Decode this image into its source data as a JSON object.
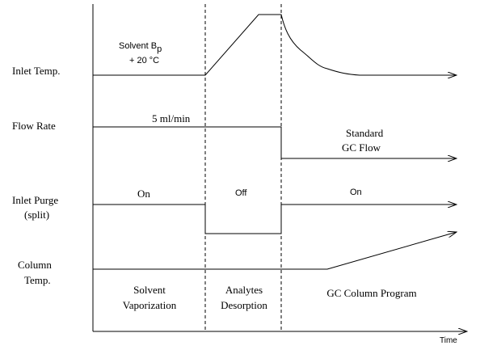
{
  "row_labels": {
    "inlet_temp": "Inlet Temp.",
    "flow_rate": "Flow Rate",
    "inlet_purge": [
      "Inlet Purge",
      "(split)"
    ],
    "column_temp": [
      "Column",
      "Temp."
    ]
  },
  "annotations": {
    "solvent_bp": [
      "Solvent B",
      "p",
      "+ 20 °C"
    ],
    "flow": "5 ml/min",
    "standard_flow": [
      "Standard",
      "GC Flow"
    ],
    "purge_on_1": "On",
    "purge_off": "Off",
    "purge_on_2": "On"
  },
  "phases": [
    [
      "Solvent",
      "Vaporization"
    ],
    [
      "Analytes",
      "Desorption"
    ],
    [
      "GC Column Program"
    ]
  ],
  "x_axis_label": "Time"
}
